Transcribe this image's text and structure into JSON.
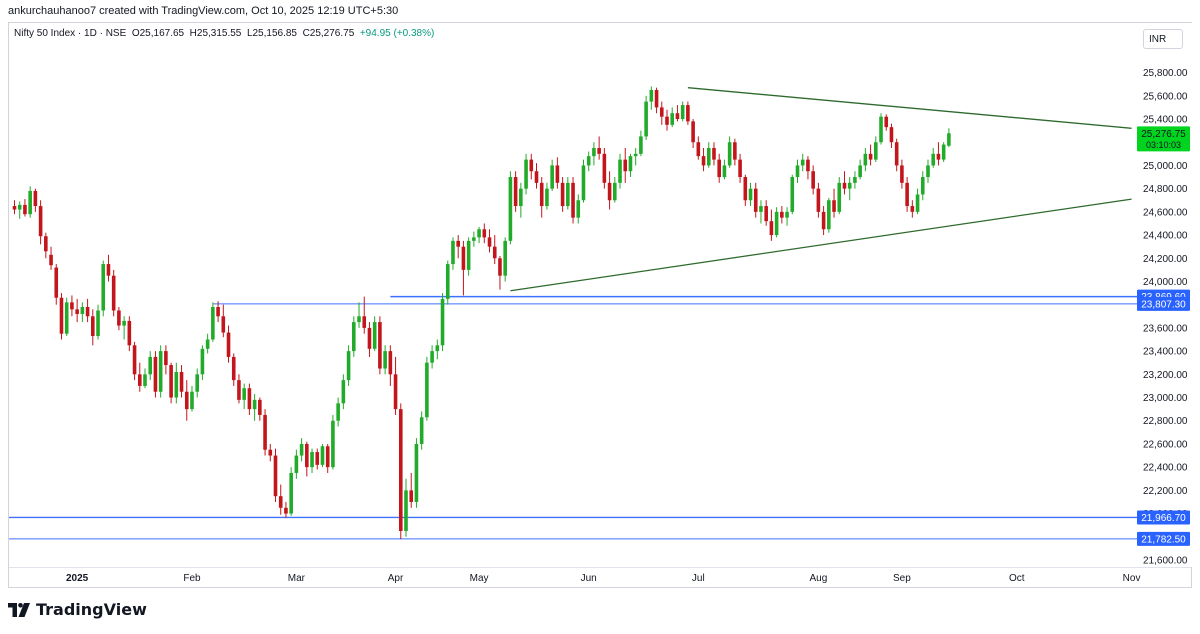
{
  "attribution": "ankurchauhanoo7 created with TradingView.com, Oct 10, 2025 12:19 UTC+5:30",
  "legend": {
    "symbol": "Nifty 50 Index · 1D · NSE",
    "open": "O25,167.65",
    "high": "H25,315.55",
    "low": "L25,156.85",
    "close": "C25,276.75",
    "change": "+94.95 (+0.38%)"
  },
  "currency": "INR",
  "brand": "TradingView",
  "colors": {
    "up": "#22ab2a",
    "down": "#c3161c",
    "line_green": "#2e6a2e",
    "level_blue": "#2962ff",
    "price_badge": "#00d41e"
  },
  "chart_data": {
    "type": "candlestick",
    "ylim": [
      21600,
      25900
    ],
    "y_ticks": [
      {
        "value": 21600,
        "label": "21,600.00"
      },
      {
        "value": 22000,
        "label": "22,000.00"
      },
      {
        "value": 22200,
        "label": "22,200.00"
      },
      {
        "value": 22400,
        "label": "22,400.00"
      },
      {
        "value": 22600,
        "label": "22,600.00"
      },
      {
        "value": 22800,
        "label": "22,800.00"
      },
      {
        "value": 23000,
        "label": "23,000.00"
      },
      {
        "value": 23200,
        "label": "23,200.00"
      },
      {
        "value": 23400,
        "label": "23,400.00"
      },
      {
        "value": 23600,
        "label": "23,600.00"
      },
      {
        "value": 24000,
        "label": "24,000.00"
      },
      {
        "value": 24200,
        "label": "24,200.00"
      },
      {
        "value": 24400,
        "label": "24,400.00"
      },
      {
        "value": 24600,
        "label": "24,600.00"
      },
      {
        "value": 24800,
        "label": "24,800.00"
      },
      {
        "value": 25000,
        "label": "25,000.00"
      },
      {
        "value": 25400,
        "label": "25,400.00"
      },
      {
        "value": 25600,
        "label": "25,600.00"
      },
      {
        "value": 25800,
        "label": "25,800.00"
      }
    ],
    "x_ticks": [
      {
        "label": "2025",
        "bold": true,
        "bar": 12
      },
      {
        "label": "Feb",
        "bar": 34
      },
      {
        "label": "Mar",
        "bar": 54
      },
      {
        "label": "Apr",
        "bar": 73
      },
      {
        "label": "May",
        "bar": 89
      },
      {
        "label": "Jun",
        "bar": 110
      },
      {
        "label": "Jul",
        "bar": 131
      },
      {
        "label": "Aug",
        "bar": 154
      },
      {
        "label": "Sep",
        "bar": 170
      },
      {
        "label": "Oct",
        "bar": 192
      },
      {
        "label": "Nov",
        "bar": 214
      }
    ],
    "price_levels": [
      {
        "value": 23869.6,
        "label": "23,869.60",
        "from_bar": 72
      },
      {
        "value": 23807.3,
        "label": "23,807.30",
        "from_bar": 38
      },
      {
        "value": 21966.7,
        "label": "21,966.70",
        "from_bar": 0
      },
      {
        "value": 21782.5,
        "label": "21,782.50",
        "from_bar": 0
      }
    ],
    "current_price": {
      "value": 25276.75,
      "label": "25,276.75",
      "countdown": "03:10:03"
    },
    "trendlines": [
      {
        "name": "upper",
        "from": {
          "bar": 129,
          "value": 25670
        },
        "to": {
          "bar": 214,
          "value": 25320
        }
      },
      {
        "name": "lower",
        "from": {
          "bar": 95,
          "value": 23920
        },
        "to": {
          "bar": 214,
          "value": 24710
        }
      }
    ],
    "candles_start_bar": 0,
    "candles": [
      [
        24650,
        24700,
        24580,
        24620
      ],
      [
        24620,
        24690,
        24540,
        24660
      ],
      [
        24660,
        24710,
        24560,
        24580
      ],
      [
        24580,
        24820,
        24550,
        24780
      ],
      [
        24780,
        24800,
        24600,
        24650
      ],
      [
        24650,
        24700,
        24320,
        24390
      ],
      [
        24390,
        24420,
        24200,
        24260
      ],
      [
        24230,
        24300,
        24100,
        24140
      ],
      [
        24120,
        24150,
        23800,
        23860
      ],
      [
        23860,
        23900,
        23500,
        23550
      ],
      [
        23550,
        23860,
        23530,
        23820
      ],
      [
        23820,
        23880,
        23700,
        23760
      ],
      [
        23760,
        23850,
        23650,
        23720
      ],
      [
        23720,
        23820,
        23650,
        23780
      ],
      [
        23780,
        23850,
        23650,
        23700
      ],
      [
        23700,
        23760,
        23450,
        23530
      ],
      [
        23530,
        23800,
        23500,
        23750
      ],
      [
        23750,
        24180,
        23700,
        24150
      ],
      [
        24150,
        24230,
        24000,
        24050
      ],
      [
        24050,
        24100,
        23700,
        23750
      ],
      [
        23750,
        23780,
        23580,
        23620
      ],
      [
        23620,
        23700,
        23500,
        23660
      ],
      [
        23660,
        23700,
        23400,
        23450
      ],
      [
        23450,
        23480,
        23150,
        23200
      ],
      [
        23200,
        23300,
        23050,
        23100
      ],
      [
        23100,
        23250,
        23080,
        23200
      ],
      [
        23200,
        23400,
        23150,
        23350
      ],
      [
        23350,
        23400,
        23000,
        23050
      ],
      [
        23050,
        23450,
        23000,
        23400
      ],
      [
        23400,
        23450,
        23200,
        23280
      ],
      [
        23280,
        23300,
        22950,
        23000
      ],
      [
        23000,
        23300,
        22950,
        23220
      ],
      [
        23220,
        23280,
        23000,
        23050
      ],
      [
        23050,
        23150,
        22800,
        22900
      ],
      [
        22900,
        23100,
        22880,
        23050
      ],
      [
        23050,
        23250,
        23000,
        23200
      ],
      [
        23200,
        23450,
        23150,
        23420
      ],
      [
        23420,
        23550,
        23380,
        23500
      ],
      [
        23500,
        23820,
        23480,
        23780
      ],
      [
        23780,
        23830,
        23650,
        23700
      ],
      [
        23700,
        23800,
        23520,
        23560
      ],
      [
        23560,
        23620,
        23300,
        23350
      ],
      [
        23350,
        23380,
        23100,
        23150
      ],
      [
        23150,
        23200,
        22950,
        22980
      ],
      [
        22980,
        23120,
        22900,
        23080
      ],
      [
        23080,
        23120,
        22850,
        22900
      ],
      [
        22900,
        23030,
        22800,
        22980
      ],
      [
        22980,
        23000,
        22800,
        22850
      ],
      [
        22850,
        22900,
        22500,
        22550
      ],
      [
        22550,
        22600,
        22450,
        22500
      ],
      [
        22500,
        22560,
        22100,
        22150
      ],
      [
        22150,
        22250,
        21990,
        22050
      ],
      [
        22050,
        22100,
        21964,
        22000
      ],
      [
        22000,
        22400,
        21980,
        22350
      ],
      [
        22350,
        22550,
        22300,
        22500
      ],
      [
        22500,
        22650,
        22450,
        22600
      ],
      [
        22600,
        22620,
        22320,
        22400
      ],
      [
        22400,
        22560,
        22350,
        22530
      ],
      [
        22530,
        22560,
        22380,
        22420
      ],
      [
        22420,
        22600,
        22400,
        22580
      ],
      [
        22580,
        22600,
        22350,
        22400
      ],
      [
        22400,
        22850,
        22380,
        22800
      ],
      [
        22800,
        23000,
        22750,
        22950
      ],
      [
        22950,
        23200,
        22900,
        23150
      ],
      [
        23150,
        23450,
        23100,
        23400
      ],
      [
        23400,
        23700,
        23350,
        23650
      ],
      [
        23650,
        23820,
        23600,
        23700
      ],
      [
        23700,
        23870,
        23550,
        23600
      ],
      [
        23600,
        23650,
        23350,
        23420
      ],
      [
        23420,
        23700,
        23400,
        23650
      ],
      [
        23650,
        23700,
        23200,
        23250
      ],
      [
        23250,
        23450,
        23200,
        23400
      ],
      [
        23400,
        23450,
        23100,
        23200
      ],
      [
        23200,
        23350,
        22850,
        22900
      ],
      [
        22900,
        22950,
        21780,
        21850
      ],
      [
        21850,
        22300,
        21800,
        22200
      ],
      [
        22200,
        22350,
        22050,
        22100
      ],
      [
        22100,
        22650,
        22050,
        22600
      ],
      [
        22600,
        22880,
        22550,
        22830
      ],
      [
        22830,
        23350,
        22800,
        23300
      ],
      [
        23300,
        23450,
        23250,
        23400
      ],
      [
        23400,
        23500,
        23330,
        23450
      ],
      [
        23450,
        23900,
        23400,
        23850
      ],
      [
        23850,
        24180,
        23800,
        24150
      ],
      [
        24150,
        24380,
        24100,
        24350
      ],
      [
        24350,
        24400,
        24200,
        24300
      ],
      [
        24300,
        24350,
        23880,
        24100
      ],
      [
        24100,
        24380,
        24050,
        24350
      ],
      [
        24350,
        24430,
        24300,
        24380
      ],
      [
        24380,
        24470,
        24330,
        24450
      ],
      [
        24450,
        24500,
        24330,
        24380
      ],
      [
        24380,
        24450,
        24250,
        24300
      ],
      [
        24300,
        24400,
        24150,
        24200
      ],
      [
        24200,
        24220,
        23930,
        24050
      ],
      [
        24050,
        24380,
        24000,
        24350
      ],
      [
        24350,
        24950,
        24320,
        24900
      ],
      [
        24900,
        24950,
        24600,
        24650
      ],
      [
        24650,
        24850,
        24550,
        24800
      ],
      [
        24800,
        25100,
        24750,
        25050
      ],
      [
        25050,
        25100,
        24880,
        24950
      ],
      [
        24950,
        25020,
        24800,
        24850
      ],
      [
        24850,
        24900,
        24550,
        24650
      ],
      [
        24650,
        24850,
        24620,
        24800
      ],
      [
        24800,
        25050,
        24780,
        25000
      ],
      [
        25000,
        25070,
        24800,
        24850
      ],
      [
        24850,
        24900,
        24600,
        24650
      ],
      [
        24650,
        24900,
        24620,
        24850
      ],
      [
        24850,
        24900,
        24500,
        24550
      ],
      [
        24550,
        24750,
        24500,
        24700
      ],
      [
        24700,
        25050,
        24680,
        25000
      ],
      [
        25000,
        25120,
        24950,
        25080
      ],
      [
        25080,
        25200,
        25000,
        25150
      ],
      [
        25150,
        25250,
        25050,
        25100
      ],
      [
        25100,
        25150,
        24800,
        24850
      ],
      [
        24850,
        24950,
        24620,
        24700
      ],
      [
        24700,
        24900,
        24680,
        24850
      ],
      [
        24850,
        25100,
        24800,
        25050
      ],
      [
        25050,
        25150,
        24850,
        24950
      ],
      [
        24950,
        25100,
        24900,
        25080
      ],
      [
        25080,
        25150,
        25000,
        25100
      ],
      [
        25100,
        25300,
        25080,
        25250
      ],
      [
        25250,
        25600,
        25220,
        25550
      ],
      [
        25550,
        25680,
        25480,
        25650
      ],
      [
        25650,
        25670,
        25450,
        25500
      ],
      [
        25500,
        25550,
        25350,
        25420
      ],
      [
        25420,
        25480,
        25300,
        25350
      ],
      [
        25350,
        25500,
        25330,
        25450
      ],
      [
        25450,
        25520,
        25380,
        25400
      ],
      [
        25400,
        25550,
        25380,
        25520
      ],
      [
        25520,
        25550,
        25350,
        25380
      ],
      [
        25380,
        25400,
        25150,
        25200
      ],
      [
        25200,
        25250,
        25050,
        25080
      ],
      [
        25080,
        25150,
        24950,
        25000
      ],
      [
        25000,
        25200,
        24980,
        25150
      ],
      [
        25150,
        25200,
        25000,
        25050
      ],
      [
        25050,
        25100,
        24850,
        24900
      ],
      [
        24900,
        25050,
        24880,
        25000
      ],
      [
        25000,
        25250,
        24980,
        25200
      ],
      [
        25200,
        25230,
        25000,
        25050
      ],
      [
        25050,
        25100,
        24850,
        24900
      ],
      [
        24900,
        24920,
        24650,
        24700
      ],
      [
        24700,
        24850,
        24650,
        24800
      ],
      [
        24800,
        24850,
        24550,
        24600
      ],
      [
        24600,
        24700,
        24500,
        24650
      ],
      [
        24650,
        24700,
        24480,
        24520
      ],
      [
        24520,
        24620,
        24350,
        24400
      ],
      [
        24400,
        24640,
        24380,
        24600
      ],
      [
        24600,
        24650,
        24500,
        24550
      ],
      [
        24550,
        24640,
        24480,
        24600
      ],
      [
        24600,
        24920,
        24580,
        24900
      ],
      [
        24900,
        25050,
        24850,
        25000
      ],
      [
        25000,
        25100,
        24950,
        25050
      ],
      [
        25050,
        25080,
        24880,
        24950
      ],
      [
        24950,
        25000,
        24750,
        24800
      ],
      [
        24800,
        24850,
        24550,
        24600
      ],
      [
        24600,
        24650,
        24400,
        24450
      ],
      [
        24450,
        24720,
        24420,
        24700
      ],
      [
        24700,
        24800,
        24550,
        24600
      ],
      [
        24600,
        24900,
        24580,
        24850
      ],
      [
        24850,
        24950,
        24750,
        24800
      ],
      [
        24800,
        24900,
        24700,
        24850
      ],
      [
        24850,
        24950,
        24800,
        24900
      ],
      [
        24900,
        25050,
        24880,
        25000
      ],
      [
        25000,
        25150,
        24950,
        25100
      ],
      [
        25100,
        25180,
        25000,
        25050
      ],
      [
        25050,
        25250,
        25030,
        25200
      ],
      [
        25200,
        25450,
        25180,
        25420
      ],
      [
        25420,
        25440,
        25300,
        25330
      ],
      [
        25330,
        25360,
        25150,
        25200
      ],
      [
        25200,
        25230,
        24950,
        25000
      ],
      [
        25000,
        25050,
        24800,
        24850
      ],
      [
        24850,
        24900,
        24600,
        24650
      ],
      [
        24650,
        24700,
        24550,
        24600
      ],
      [
        24600,
        24800,
        24580,
        24750
      ],
      [
        24750,
        24950,
        24700,
        24900
      ],
      [
        24900,
        25050,
        24850,
        25000
      ],
      [
        25000,
        25150,
        24980,
        25100
      ],
      [
        25100,
        25200,
        25000,
        25050
      ],
      [
        25050,
        25200,
        25030,
        25180
      ],
      [
        25170,
        25320,
        25157,
        25277
      ]
    ]
  }
}
